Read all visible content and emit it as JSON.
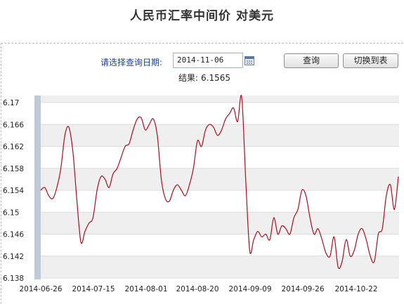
{
  "page_title": "人民币汇率中间价  对美元",
  "form": {
    "date_label": "请选择查询日期:",
    "date_value": "2014-11-06",
    "calendar_icon": "calendar-icon",
    "query_button": "查询",
    "table_button": "切换到表"
  },
  "result": {
    "label": "结果:",
    "value": "6.1565"
  },
  "colors": {
    "line": "#a4101c",
    "band_light": "#ffffff",
    "band_dark": "#efefef",
    "axis_bar": "#bfcadb"
  },
  "chart_data": {
    "type": "line",
    "title": "",
    "xlabel": "",
    "ylabel": "",
    "ylim": [
      6.138,
      6.17
    ],
    "y_ticks": [
      "6.17",
      "6.166",
      "6.162",
      "6.158",
      "6.154",
      "6.15",
      "6.146",
      "6.142",
      "6.138"
    ],
    "x_ticks": [
      "2014-06-26",
      "2014-07-15",
      "2014-08-01",
      "2014-08-20",
      "2014-09-09",
      "2014-09-26",
      "2014-10-22"
    ],
    "grid": true,
    "legend": "none",
    "series": [
      {
        "values": [
          6.154,
          6.1545,
          6.153,
          6.1525,
          6.1545,
          6.158,
          6.164,
          6.1655,
          6.161,
          6.152,
          6.1445,
          6.1465,
          6.148,
          6.149,
          6.154,
          6.1565,
          6.156,
          6.1545,
          6.157,
          6.158,
          6.16,
          6.162,
          6.1625,
          6.165,
          6.167,
          6.1672,
          6.165,
          6.166,
          6.167,
          6.164,
          6.156,
          6.1525,
          6.152,
          6.154,
          6.155,
          6.154,
          6.153,
          6.155,
          6.158,
          6.163,
          6.162,
          6.165,
          6.166,
          6.1655,
          6.164,
          6.165,
          6.167,
          6.168,
          6.169,
          6.1665,
          6.171,
          6.156,
          6.143,
          6.145,
          6.1465,
          6.1455,
          6.146,
          6.145,
          6.149,
          6.146,
          6.1475,
          6.147,
          6.146,
          6.149,
          6.1505,
          6.154,
          6.153,
          6.149,
          6.146,
          6.147,
          6.145,
          6.1425,
          6.142,
          6.1455,
          6.14,
          6.141,
          6.145,
          6.142,
          6.143,
          6.146,
          6.147,
          6.145,
          6.142,
          6.141,
          6.146,
          6.147,
          6.153,
          6.155,
          6.1505,
          6.1565
        ]
      }
    ]
  }
}
